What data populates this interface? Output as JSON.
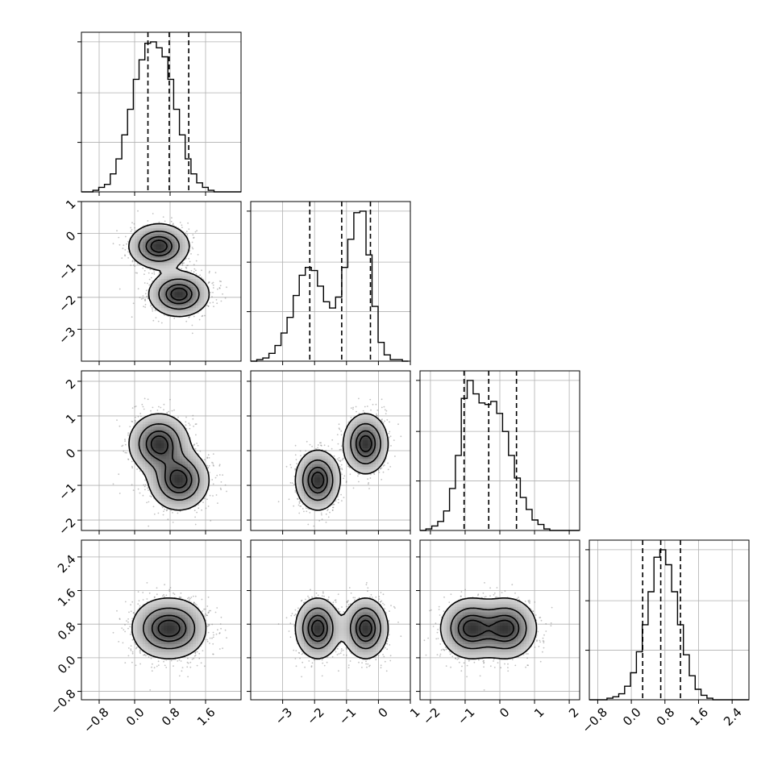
{
  "chart_data": {
    "type": "corner",
    "parameters": 4,
    "grid": true,
    "colors": {
      "line": "#000000",
      "density": "#000000",
      "grid": "#b0b0b0",
      "background": "#ffffff"
    },
    "axes": [
      {
        "index": 0,
        "range": [
          -1.2,
          2.4
        ],
        "ticks": [
          -0.8,
          0.0,
          0.8,
          1.6
        ],
        "tick_labels": [
          "−0.8",
          "0.0",
          "0.8",
          "1.6"
        ],
        "quantiles": [
          0.3,
          0.78,
          1.22
        ]
      },
      {
        "index": 1,
        "range": [
          -4.0,
          1.0
        ],
        "ticks": [
          -3,
          -2,
          -1,
          0,
          1
        ],
        "tick_labels": [
          "−3",
          "−2",
          "−1",
          "0",
          "1"
        ],
        "quantiles": [
          -2.15,
          -1.15,
          -0.25
        ]
      },
      {
        "index": 2,
        "range": [
          -2.3,
          2.3
        ],
        "ticks": [
          -2,
          -1,
          0,
          1,
          2
        ],
        "tick_labels": [
          "−2",
          "−1",
          "0",
          "1",
          "2"
        ],
        "quantiles": [
          -1.03,
          -0.32,
          0.48
        ]
      },
      {
        "index": 3,
        "range": [
          -1.0,
          2.8
        ],
        "ticks": [
          -0.8,
          0.0,
          0.8,
          1.6,
          2.4
        ],
        "tick_labels": [
          "−0.8",
          "0.0",
          "0.8",
          "1.6",
          "2.4"
        ],
        "quantiles": [
          0.27,
          0.7,
          1.17
        ]
      }
    ],
    "histograms": [
      {
        "param": 0,
        "bin_start": -1.2,
        "bin_width": 0.13,
        "counts": [
          0,
          0,
          1,
          3,
          5,
          12,
          22,
          38,
          55,
          75,
          88,
          99,
          100,
          96,
          90,
          75,
          55,
          38,
          22,
          12,
          6,
          3,
          1,
          0,
          0,
          0,
          0,
          0
        ]
      },
      {
        "param": 1,
        "bin_start": -4.0,
        "bin_width": 0.19,
        "counts": [
          0,
          1,
          2,
          5,
          10,
          18,
          28,
          42,
          55,
          60,
          58,
          48,
          38,
          34,
          41,
          60,
          78,
          95,
          96,
          68,
          35,
          12,
          4,
          1,
          1,
          0
        ]
      },
      {
        "param": 2,
        "bin_start": -2.3,
        "bin_width": 0.17,
        "counts": [
          0,
          1,
          3,
          6,
          13,
          28,
          50,
          88,
          100,
          91,
          85,
          84,
          86,
          78,
          66,
          50,
          35,
          22,
          14,
          7,
          4,
          1,
          0,
          0,
          0,
          0,
          0
        ]
      },
      {
        "param": 3,
        "bin_start": -1.0,
        "bin_width": 0.14,
        "counts": [
          0,
          0,
          0,
          1,
          2,
          4,
          9,
          18,
          32,
          50,
          72,
          95,
          100,
          90,
          72,
          50,
          30,
          16,
          7,
          3,
          1,
          0,
          0,
          0,
          0,
          0,
          0,
          0
        ]
      }
    ],
    "mixture": {
      "weights": [
        0.5,
        0.5
      ],
      "means": [
        [
          0.55,
          -0.4,
          0.2,
          0.7
        ],
        [
          1.0,
          -1.9,
          -0.85,
          0.7
        ]
      ],
      "sds": [
        0.33,
        0.34,
        0.42,
        0.35
      ],
      "samples": 1800
    },
    "contour_levels": [
      0.12,
      0.39,
      0.68,
      0.86
    ]
  }
}
